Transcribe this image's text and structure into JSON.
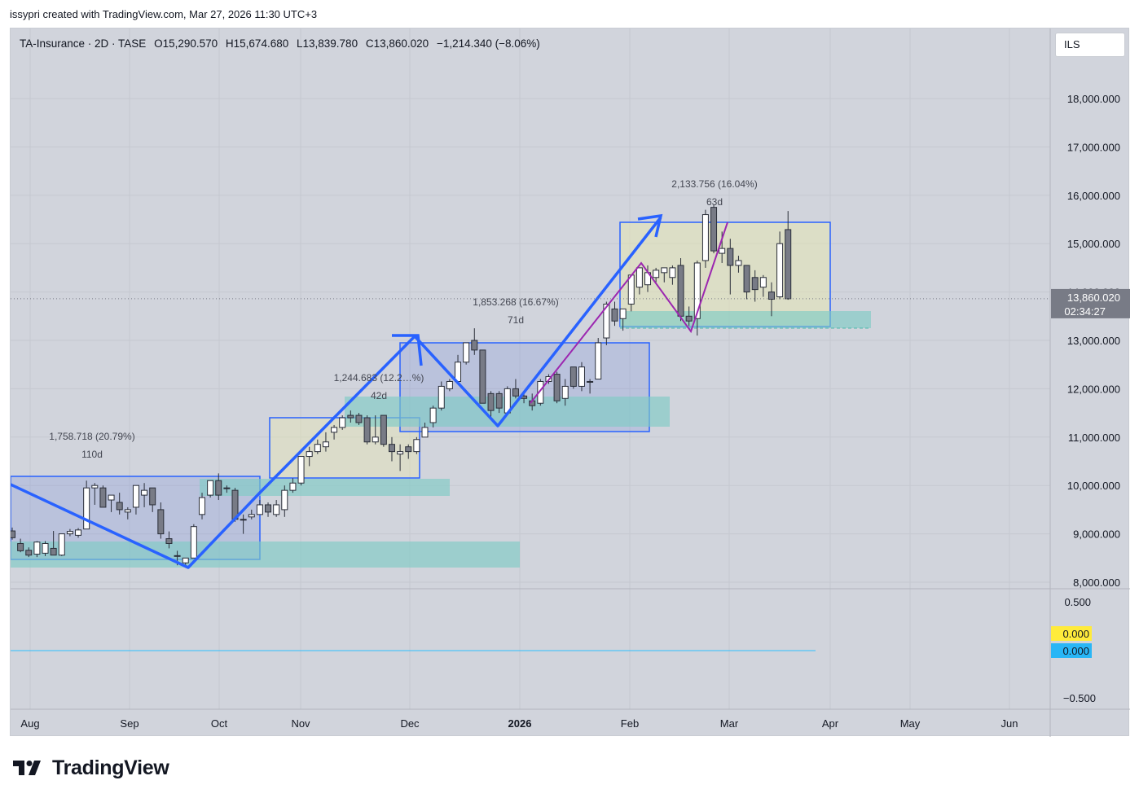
{
  "header": {
    "credit": "issypri created with TradingView.com, Mar 27, 2026 11:30 UTC+3"
  },
  "legend": {
    "symbol": "TA-Insurance · 2D · TASE",
    "open": "O15,290.570",
    "high": "H15,674.680",
    "low": "L13,839.780",
    "close": "C13,860.020",
    "change": "−1,214.340 (−8.06%)"
  },
  "currency": "ILS",
  "price_tag": {
    "price": "13,860.020",
    "countdown": "02:34:27"
  },
  "oscillator": {
    "labels": [
      "0.500",
      "−0.500"
    ],
    "tag_yellow": "0.000",
    "tag_blue": "0.000"
  },
  "annotations": [
    {
      "text": "1,758.718 (20.79%)",
      "sub": "110d"
    },
    {
      "text": "1,244.683 (12.2…%)",
      "sub": "42d"
    },
    {
      "text": "1,853.268 (16.67%)",
      "sub": "71d"
    },
    {
      "text": "2,133.756 (16.04%)",
      "sub": "63d"
    }
  ],
  "colors": {
    "background": "#d1d4dc",
    "candle_up": "#ffffff",
    "candle_down": "#787b86",
    "blue_arrow": "#2962ff",
    "purple_path": "#9c27b0",
    "box_border": "#2962ff",
    "teal_zone": "#80cbc4",
    "yellow_tag": "#ffeb3b",
    "blue_tag": "#29b6f6",
    "price_tag": "#787b86"
  },
  "footer": {
    "brand": "TradingView"
  },
  "chart_data": {
    "type": "candlestick",
    "title": "TA-Insurance · 2D · TASE",
    "x_ticks": [
      "Aug",
      "Sep",
      "Oct",
      "Nov",
      "Dec",
      "2026",
      "Feb",
      "Mar",
      "Apr",
      "May",
      "Jun"
    ],
    "y_ticks": [
      "18,000.000",
      "17,000.000",
      "16,000.000",
      "15,000.000",
      "14,000.000",
      "13,000.000",
      "12,000.000",
      "11,000.000",
      "10,000.000",
      "9,000.000",
      "8,000.000"
    ],
    "ylim": [
      7850,
      19400
    ],
    "candles": [
      [
        9060,
        9130,
        8880,
        8920
      ],
      [
        8800,
        8900,
        8620,
        8650
      ],
      [
        8660,
        8720,
        8520,
        8560
      ],
      [
        8580,
        8850,
        8520,
        8830
      ],
      [
        8600,
        8850,
        8540,
        8800
      ],
      [
        8700,
        9060,
        8560,
        8560
      ],
      [
        8560,
        9000,
        8540,
        9000
      ],
      [
        9000,
        9100,
        8950,
        9050
      ],
      [
        8970,
        9120,
        8920,
        9080
      ],
      [
        9100,
        10100,
        9100,
        9950
      ],
      [
        9950,
        10050,
        9600,
        10000
      ],
      [
        9950,
        10000,
        9550,
        9550
      ],
      [
        9700,
        9800,
        9450,
        9800
      ],
      [
        9650,
        9850,
        9400,
        9500
      ],
      [
        9450,
        9550,
        9300,
        9500
      ],
      [
        9550,
        10000,
        9400,
        10000
      ],
      [
        9800,
        10050,
        9550,
        9900
      ],
      [
        9950,
        9950,
        9450,
        9600
      ],
      [
        9500,
        9650,
        8900,
        9000
      ],
      [
        8900,
        9050,
        8700,
        8800
      ],
      [
        8550,
        8650,
        8350,
        8550
      ],
      [
        8400,
        8500,
        8300,
        8500
      ],
      [
        8500,
        9200,
        8500,
        9150
      ],
      [
        9400,
        9850,
        9300,
        9750
      ],
      [
        9800,
        10100,
        9750,
        10100
      ],
      [
        10100,
        10250,
        9700,
        9800
      ],
      [
        9950,
        10000,
        9850,
        9950
      ],
      [
        9900,
        9950,
        9250,
        9300
      ],
      [
        9300,
        9400,
        9000,
        9300
      ],
      [
        9350,
        9500,
        9300,
        9400
      ],
      [
        9400,
        9700,
        9400,
        9600
      ],
      [
        9600,
        9650,
        9350,
        9450
      ],
      [
        9400,
        9700,
        9350,
        9600
      ],
      [
        9500,
        10000,
        9350,
        9900
      ],
      [
        9900,
        10150,
        9850,
        10050
      ],
      [
        10050,
        10600,
        10000,
        10600
      ],
      [
        10600,
        10800,
        10400,
        10700
      ],
      [
        10700,
        10950,
        10650,
        10850
      ],
      [
        10800,
        11100,
        10700,
        10900
      ],
      [
        11100,
        11250,
        10950,
        11200
      ],
      [
        11200,
        11450,
        11150,
        11400
      ],
      [
        11450,
        11550,
        11300,
        11400
      ],
      [
        11450,
        11500,
        11250,
        11300
      ],
      [
        11400,
        11450,
        10850,
        10900
      ],
      [
        10900,
        11450,
        10850,
        11000
      ],
      [
        11450,
        11450,
        10800,
        10850
      ],
      [
        10850,
        11000,
        10500,
        10700
      ],
      [
        10650,
        10850,
        10300,
        10700
      ],
      [
        10800,
        10850,
        10550,
        10700
      ],
      [
        10700,
        11000,
        10650,
        10950
      ],
      [
        11000,
        11300,
        11000,
        11200
      ],
      [
        11300,
        11650,
        11200,
        11600
      ],
      [
        11600,
        12150,
        11550,
        12050
      ],
      [
        12000,
        12200,
        11950,
        12150
      ],
      [
        12150,
        12700,
        12100,
        12550
      ],
      [
        12550,
        12950,
        12500,
        12950
      ],
      [
        13000,
        13250,
        12700,
        12800
      ],
      [
        12800,
        12800,
        11700,
        11700
      ],
      [
        11900,
        11950,
        11400,
        11550
      ],
      [
        11900,
        11950,
        11500,
        11600
      ],
      [
        11500,
        12050,
        11500,
        12000
      ],
      [
        12000,
        12200,
        11800,
        11850
      ],
      [
        11850,
        11950,
        11700,
        11800
      ],
      [
        11750,
        11900,
        11550,
        11650
      ],
      [
        11700,
        12200,
        11650,
        12150
      ],
      [
        12150,
        12300,
        12100,
        12250
      ],
      [
        12300,
        12350,
        11700,
        11750
      ],
      [
        11800,
        12200,
        11650,
        12050
      ],
      [
        12450,
        12450,
        12000,
        12050
      ],
      [
        12050,
        12550,
        11950,
        12450
      ],
      [
        12150,
        12200,
        11900,
        12150
      ],
      [
        12200,
        13050,
        12200,
        12950
      ],
      [
        13050,
        13800,
        12900,
        13750
      ],
      [
        13650,
        13800,
        13300,
        13400
      ],
      [
        13450,
        13550,
        13200,
        13650
      ],
      [
        13750,
        14350,
        13600,
        14350
      ],
      [
        14100,
        14500,
        13950,
        14500
      ],
      [
        14150,
        14550,
        14000,
        14400
      ],
      [
        14300,
        14500,
        14200,
        14450
      ],
      [
        14400,
        14500,
        14200,
        14500
      ],
      [
        14300,
        14550,
        14150,
        14500
      ],
      [
        14550,
        14700,
        13400,
        13500
      ],
      [
        13500,
        13700,
        13300,
        13400
      ],
      [
        13450,
        14650,
        13100,
        14600
      ],
      [
        14650,
        15700,
        14500,
        15600
      ],
      [
        15750,
        15800,
        14800,
        14850
      ],
      [
        14800,
        15250,
        14600,
        14900
      ],
      [
        14900,
        15100,
        13950,
        14550
      ],
      [
        14550,
        14750,
        14400,
        14650
      ],
      [
        14550,
        14550,
        13850,
        14000
      ],
      [
        14300,
        14450,
        13800,
        14050
      ],
      [
        14100,
        14350,
        13900,
        14300
      ],
      [
        14000,
        14200,
        13500,
        13850
      ],
      [
        13900,
        15250,
        13850,
        15000
      ],
      [
        15290.57,
        15674.68,
        13839.78,
        13860.02
      ]
    ],
    "zones": [
      {
        "type": "measure-box",
        "label": "1,758.718 (20.79%)",
        "duration": "110d"
      },
      {
        "type": "measure-box",
        "label": "1,244.683 (12.2…%)",
        "duration": "42d"
      },
      {
        "type": "measure-box",
        "label": "1,853.268 (16.67%)",
        "duration": "71d"
      },
      {
        "type": "measure-box",
        "label": "2,133.756 (16.04%)",
        "duration": "63d"
      }
    ],
    "last_price": 13860.02,
    "oscillator_ylim": [
      -0.6,
      0.6
    ],
    "oscillator_value": 0.0
  }
}
